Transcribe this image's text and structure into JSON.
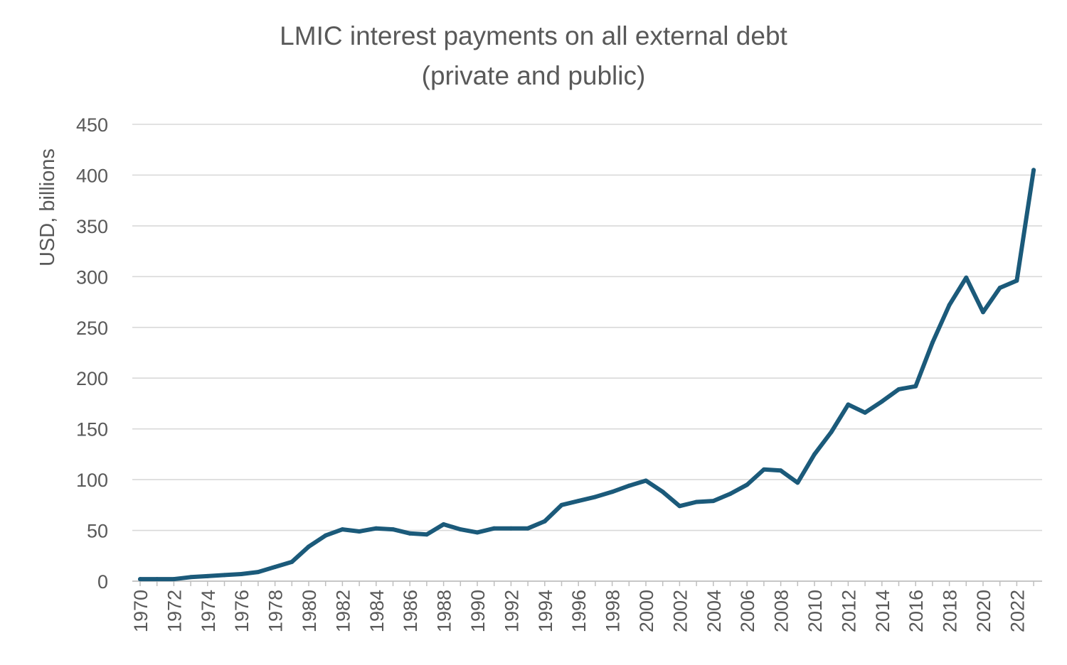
{
  "chart_data": {
    "type": "line",
    "title": "LMIC interest payments on all external debt",
    "subtitle": "(private and public)",
    "xlabel": "",
    "ylabel": "USD, billions",
    "ylim": [
      0,
      450
    ],
    "yticks": [
      0,
      50,
      100,
      150,
      200,
      250,
      300,
      350,
      400,
      450
    ],
    "x_tick_labels": [
      "1970",
      "1972",
      "1974",
      "1976",
      "1978",
      "1980",
      "1982",
      "1984",
      "1986",
      "1988",
      "1990",
      "1992",
      "1994",
      "1996",
      "1998",
      "2000",
      "2002",
      "2004",
      "2006",
      "2008",
      "2010",
      "2012",
      "2014",
      "2016",
      "2018",
      "2020",
      "2022"
    ],
    "grid": true,
    "legend": "none",
    "line_color": "#1b5a7a",
    "x": [
      1970,
      1971,
      1972,
      1973,
      1974,
      1975,
      1976,
      1977,
      1978,
      1979,
      1980,
      1981,
      1982,
      1983,
      1984,
      1985,
      1986,
      1987,
      1988,
      1989,
      1990,
      1991,
      1992,
      1993,
      1994,
      1995,
      1996,
      1997,
      1998,
      1999,
      2000,
      2001,
      2002,
      2003,
      2004,
      2005,
      2006,
      2007,
      2008,
      2009,
      2010,
      2011,
      2012,
      2013,
      2014,
      2015,
      2016,
      2017,
      2018,
      2019,
      2020,
      2021,
      2022,
      2023
    ],
    "series": [
      {
        "values": [
          2,
          2,
          2,
          4,
          5,
          6,
          7,
          9,
          14,
          19,
          34,
          45,
          51,
          49,
          52,
          51,
          47,
          46,
          56,
          51,
          48,
          52,
          52,
          52,
          59,
          75,
          79,
          83,
          88,
          94,
          99,
          88,
          74,
          78,
          79,
          86,
          95,
          110,
          109,
          97,
          125,
          147,
          174,
          166,
          177,
          189,
          192,
          235,
          272,
          299,
          265,
          289,
          296,
          405
        ]
      }
    ]
  }
}
